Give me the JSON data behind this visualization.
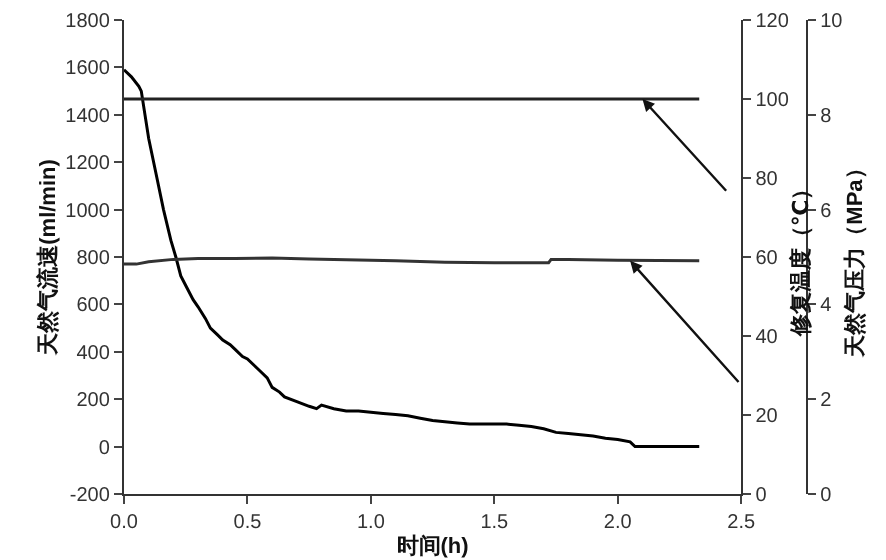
{
  "chart_data": {
    "type": "line",
    "xlabel": "时间(h)",
    "ylabel": "天然气流速(ml/min)",
    "y2label": "修复温度（℃）",
    "y3label": "天然气压力（MPa）",
    "xlim": [
      0,
      2.5
    ],
    "xticks": [
      {
        "value": 0,
        "label": "0.0"
      },
      {
        "value": 0.5,
        "label": "0.5"
      },
      {
        "value": 1,
        "label": "1.0"
      },
      {
        "value": 1.5,
        "label": "1.5"
      },
      {
        "value": 2,
        "label": "2.0"
      },
      2.5
    ],
    "ylim": [
      -200,
      1800
    ],
    "yticks": [
      -200,
      0,
      200,
      400,
      600,
      800,
      1000,
      1200,
      1400,
      1600,
      1800
    ],
    "y2lim": [
      0,
      120
    ],
    "y2ticks": [
      0,
      20,
      40,
      60,
      80,
      100,
      120
    ],
    "y3lim": [
      0,
      10
    ],
    "y3ticks": [
      0,
      2,
      4,
      6,
      8,
      10
    ],
    "grid": false,
    "series": [
      {
        "color": "#000000",
        "x": [
          0,
          0.03,
          0.06,
          0.07,
          0.1,
          0.13,
          0.16,
          0.19,
          0.21,
          0.23,
          0.25,
          0.28,
          0.3,
          0.33,
          0.35,
          0.38,
          0.4,
          0.43,
          0.45,
          0.48,
          0.5,
          0.53,
          0.55,
          0.58,
          0.6,
          0.63,
          0.65,
          0.7,
          0.75,
          0.78,
          0.8,
          0.85,
          0.9,
          0.95,
          1.0,
          1.05,
          1.1,
          1.15,
          1.2,
          1.25,
          1.3,
          1.35,
          1.4,
          1.45,
          1.5,
          1.55,
          1.6,
          1.65,
          1.7,
          1.75,
          1.8,
          1.85,
          1.9,
          1.95,
          2.0,
          2.05,
          2.07,
          2.1,
          2.2,
          2.33
        ],
        "values": [
          1590,
          1560,
          1520,
          1500,
          1300,
          1150,
          1000,
          870,
          800,
          720,
          680,
          620,
          590,
          540,
          500,
          470,
          450,
          430,
          410,
          380,
          370,
          340,
          320,
          290,
          250,
          230,
          210,
          190,
          170,
          160,
          175,
          160,
          150,
          150,
          145,
          140,
          135,
          130,
          120,
          110,
          105,
          100,
          95,
          95,
          95,
          95,
          90,
          85,
          75,
          60,
          55,
          50,
          45,
          35,
          30,
          20,
          0,
          0,
          0,
          0
        ]
      },
      {
        "color": "#222222",
        "axis": "y2",
        "x": [
          0,
          0.5,
          1.0,
          1.5,
          2.0,
          2.33
        ],
        "values": [
          100,
          100,
          100,
          100,
          100,
          100
        ]
      },
      {
        "color": "#333333",
        "axis": "y3",
        "x": [
          0,
          0.05,
          0.1,
          0.2,
          0.3,
          0.45,
          0.6,
          0.75,
          0.9,
          1.1,
          1.3,
          1.5,
          1.72,
          1.73,
          1.8,
          2.0,
          2.33
        ],
        "values": [
          4.85,
          4.85,
          4.9,
          4.95,
          4.97,
          4.97,
          4.98,
          4.96,
          4.94,
          4.92,
          4.89,
          4.88,
          4.88,
          4.95,
          4.95,
          4.93,
          4.92
        ]
      }
    ]
  }
}
